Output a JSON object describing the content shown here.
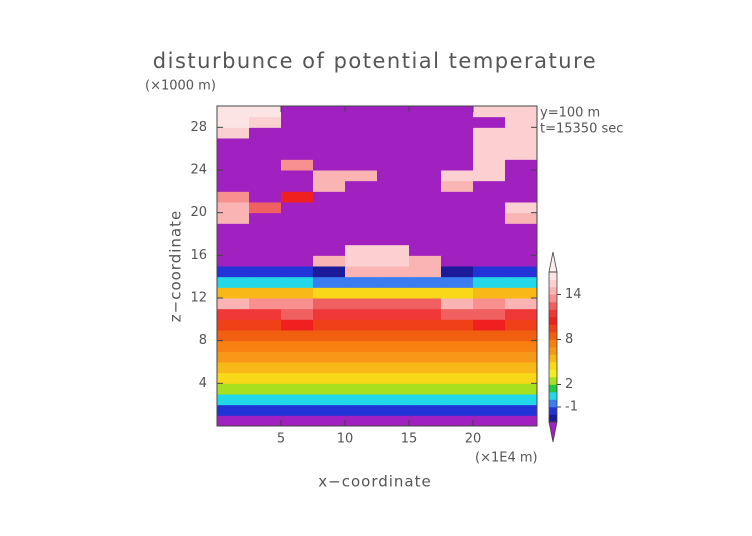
{
  "chart_data": {
    "type": "heatmap",
    "title": "disturbunce of potential temperature",
    "y_unit": "(×1000 m)",
    "x_unit": "(×1E4 m)",
    "xlabel": "x−coordinate",
    "ylabel": "z−coordinate",
    "annotations": [
      "y=100 m",
      "t=15350 sec"
    ],
    "xlim": [
      0,
      25
    ],
    "ylim": [
      0,
      30
    ],
    "xticks": [
      5,
      10,
      15,
      20
    ],
    "yticks": [
      4,
      8,
      12,
      16,
      20,
      24,
      28
    ],
    "x": [
      1.25,
      3.75,
      6.25,
      8.75,
      11.25,
      13.75,
      16.25,
      18.75,
      21.25,
      23.75
    ],
    "y": [
      0.5,
      1.5,
      2.5,
      3.5,
      4.5,
      5.5,
      6.5,
      7.5,
      8.5,
      9.5,
      10.5,
      11.5,
      12.5,
      13.5,
      14.5,
      15.5,
      16.5,
      17.5,
      18.5,
      19.5,
      20.5,
      21.5,
      22.5,
      23.5,
      24.5,
      25.5,
      26.5,
      27.5,
      28.5,
      29.5
    ],
    "values": [
      [
        -4,
        -4,
        -4,
        -4,
        -4,
        -4,
        -4,
        -4,
        -4,
        -4
      ],
      [
        -2,
        -2,
        -2,
        -2,
        -2,
        -2,
        -2,
        -2,
        -2,
        -2
      ],
      [
        0,
        0,
        0,
        0,
        0,
        0,
        0,
        0,
        0,
        0
      ],
      [
        2,
        2,
        2,
        2,
        2,
        2,
        2,
        2,
        2,
        2
      ],
      [
        4,
        4,
        4,
        4,
        4,
        4,
        4,
        4,
        4,
        4
      ],
      [
        5,
        5,
        5,
        5,
        5,
        5,
        5,
        5,
        5,
        5
      ],
      [
        6,
        6,
        6,
        6,
        6,
        6,
        6,
        6,
        6,
        6
      ],
      [
        7,
        7,
        7,
        7,
        7,
        7,
        7,
        7,
        7,
        7
      ],
      [
        8,
        8,
        8,
        8,
        8,
        8,
        8,
        8,
        8,
        8
      ],
      [
        9,
        9,
        10,
        9,
        9,
        9,
        9,
        9,
        10,
        9
      ],
      [
        11,
        11,
        12,
        11,
        11,
        11,
        11,
        12,
        12,
        11
      ],
      [
        14,
        13,
        13,
        12,
        12,
        12,
        12,
        14,
        13,
        14
      ],
      [
        5,
        5,
        5,
        4,
        4,
        4,
        4,
        4,
        5,
        5
      ],
      [
        0,
        0,
        0,
        -1,
        -1,
        -1,
        -1,
        -1,
        0,
        0
      ],
      [
        -2,
        -2,
        -2,
        -3,
        14,
        14,
        14,
        -3,
        -2,
        -2
      ],
      [
        -4,
        -4,
        -4,
        14,
        15,
        15,
        14,
        -4,
        -4,
        -4
      ],
      [
        -4,
        -4,
        -4,
        -4,
        15,
        15,
        -4,
        -4,
        -4,
        -4
      ],
      [
        -4,
        -4,
        -4,
        -4,
        -4,
        -4,
        -4,
        -4,
        -4,
        -4
      ],
      [
        -4,
        -4,
        -4,
        -4,
        -4,
        -4,
        -4,
        -4,
        -4,
        -4
      ],
      [
        14,
        -4,
        -4,
        -4,
        -4,
        -4,
        -4,
        -4,
        -4,
        14
      ],
      [
        14,
        12,
        -4,
        -4,
        -4,
        -4,
        -4,
        -4,
        -4,
        15
      ],
      [
        13,
        -4,
        10,
        -4,
        -4,
        -4,
        -4,
        -4,
        -4,
        -4
      ],
      [
        -4,
        -4,
        -4,
        14,
        -4,
        -4,
        -4,
        14,
        -4,
        -4
      ],
      [
        -4,
        -4,
        -4,
        14,
        14,
        -4,
        -4,
        15,
        15,
        -4
      ],
      [
        -4,
        -4,
        13,
        -4,
        -4,
        -4,
        -4,
        -4,
        15,
        -4
      ],
      [
        -4,
        -4,
        -4,
        -4,
        -4,
        -4,
        -4,
        -4,
        15,
        15
      ],
      [
        -4,
        -4,
        -4,
        -4,
        -4,
        -4,
        -4,
        -4,
        15,
        15
      ],
      [
        15,
        -4,
        -4,
        -4,
        -4,
        -4,
        -4,
        -4,
        15,
        15
      ],
      [
        16,
        15,
        -4,
        -4,
        -4,
        -4,
        -4,
        -4,
        -4,
        15
      ],
      [
        16,
        16,
        -4,
        -4,
        -4,
        -4,
        -4,
        -4,
        15,
        15
      ]
    ],
    "colorbar": {
      "lim": [
        -3,
        17
      ],
      "ticks": [
        -1,
        2,
        8,
        14
      ],
      "colors": [
        "#1a1a9a",
        "#2233d8",
        "#3b7cf0",
        "#22d8e8",
        "#22c840",
        "#a8e020",
        "#f0f020",
        "#f8d818",
        "#f8b818",
        "#f89818",
        "#f88010",
        "#f06010",
        "#f04018",
        "#f02020",
        "#f03838",
        "#f06060",
        "#f89090",
        "#fab4b4",
        "#fcd0d0",
        "#fde4e4"
      ],
      "under_color": "#a020c0",
      "over_color": "#fdeeee"
    }
  }
}
